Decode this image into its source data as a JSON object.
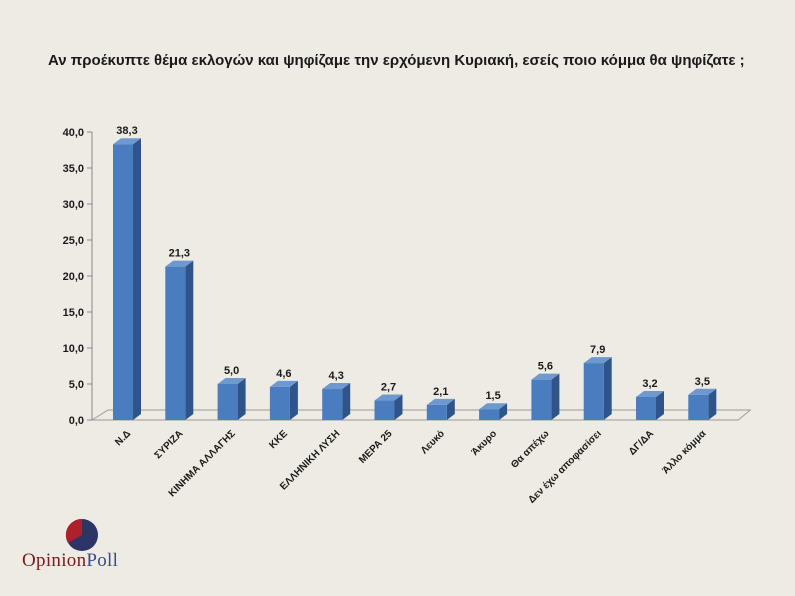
{
  "title": "Αν προέκυπτε θέμα εκλογών και ψηφίζαμε την ερχόμενη Κυριακή, εσείς ποιο κόμμα θα ψηφίζατε ;",
  "chart_data": {
    "type": "bar",
    "categories": [
      "Ν.Δ",
      "ΣΥΡΙΖΑ",
      "ΚΙΝΗΜΑ ΑΛΛΑΓΗΣ",
      "ΚΚΕ",
      "ΕΛΛΗΝΙΚΗ ΛΥΣΗ",
      "ΜΕΡΑ 25",
      "Λευκό",
      "Άκυρο",
      "Θα απέχω",
      "Δεν έχω αποφασίσει",
      "ΔΓ/ΔΑ",
      "Άλλο κόμμα"
    ],
    "values": [
      38.3,
      21.3,
      5.0,
      4.6,
      4.3,
      2.7,
      2.1,
      1.5,
      5.6,
      7.9,
      3.2,
      3.5
    ],
    "value_labels": [
      "38,3",
      "21,3",
      "5,0",
      "4,6",
      "4,3",
      "2,7",
      "2,1",
      "1,5",
      "5,6",
      "7,9",
      "3,2",
      "3,5"
    ],
    "yticks": [
      "0,0",
      "5,0",
      "10,0",
      "15,0",
      "20,0",
      "25,0",
      "30,0",
      "35,0",
      "40,0"
    ],
    "ylim": [
      0,
      40
    ],
    "bar_color": "#4a7cc0",
    "bar_side_color": "#2e5489",
    "bar_top_color": "#6e98d0",
    "grid": false,
    "legend": false
  },
  "logo": {
    "part1": "Opinion",
    "part2": "Poll",
    "colors": [
      "#b0202a",
      "#2c3566"
    ]
  }
}
